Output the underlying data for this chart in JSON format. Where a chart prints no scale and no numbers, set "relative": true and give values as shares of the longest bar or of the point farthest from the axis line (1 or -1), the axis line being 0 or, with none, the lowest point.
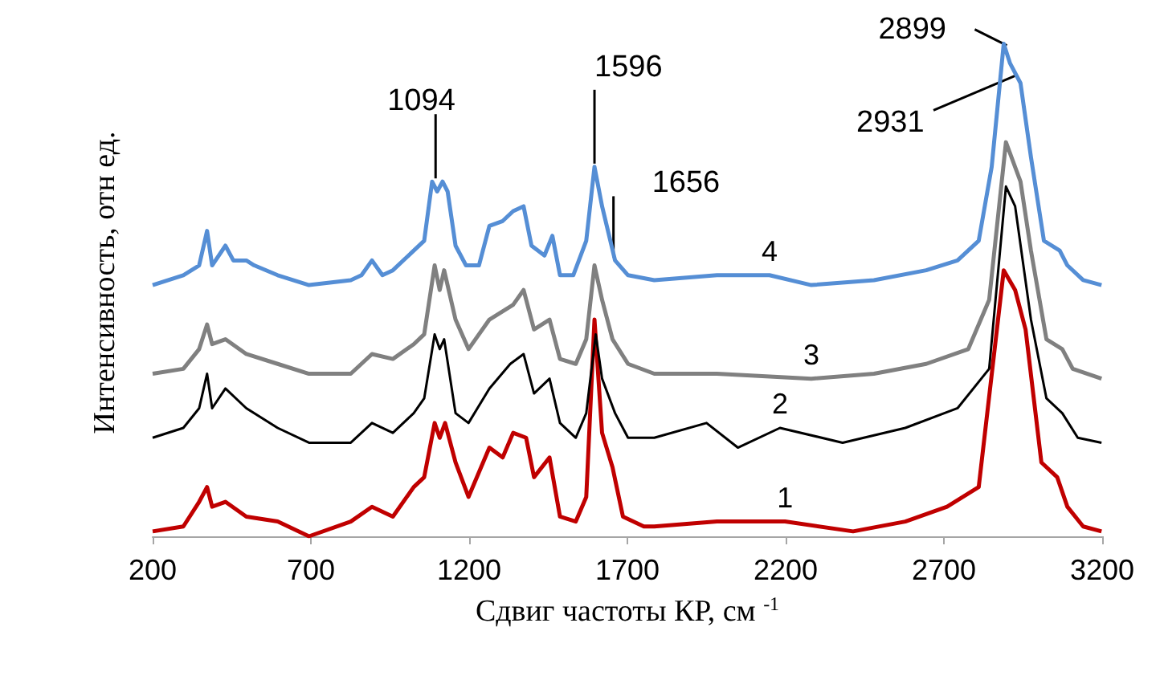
{
  "chart_data": {
    "type": "line",
    "relative": true,
    "xlabel": "Сдвиг частоты КР, см $^{-1}$",
    "ylabel": "Интенсивность, отн ед.",
    "xlim": [
      200,
      3200
    ],
    "xticks": [
      200,
      700,
      {
        "value": 1200,
        "label": "1200"
      },
      {
        "value": 1700,
        "label": "1700"
      },
      {
        "value": 2200,
        "label": "2200"
      },
      {
        "value": 2700,
        "label": "2700"
      },
      {
        "value": 3200,
        "label": "3200"
      }
    ],
    "grid": false,
    "legend": false,
    "marker": "none",
    "line_style": "solid",
    "series": [
      {
        "name": "1",
        "color": "#c00000",
        "x": [
          200,
          297,
          347,
          372,
          388,
          430,
          496,
          595,
          694,
          826,
          893,
          959,
          1025,
          1058,
          1091,
          1107,
          1124,
          1157,
          1198,
          1264,
          1306,
          1339,
          1380,
          1405,
          1454,
          1487,
          1537,
          1570,
          1596,
          1620,
          1653,
          1686,
          1752,
          1785,
          1983,
          2198,
          2413,
          2578,
          2710,
          2810,
          2889,
          2925,
          2958,
          3008,
          3058,
          3090,
          3140,
          3198
        ],
        "values": [
          0.01,
          0.02,
          0.07,
          0.1,
          0.06,
          0.07,
          0.04,
          0.03,
          0.0,
          0.03,
          0.06,
          0.04,
          0.1,
          0.12,
          0.23,
          0.2,
          0.23,
          0.15,
          0.08,
          0.18,
          0.16,
          0.21,
          0.2,
          0.12,
          0.16,
          0.04,
          0.03,
          0.08,
          0.44,
          0.21,
          0.14,
          0.04,
          0.02,
          0.02,
          0.03,
          0.03,
          0.01,
          0.03,
          0.06,
          0.1,
          0.54,
          0.5,
          0.42,
          0.15,
          0.12,
          0.06,
          0.02,
          0.01
        ]
      },
      {
        "name": "2",
        "color": "#000000",
        "x": [
          200,
          297,
          347,
          372,
          388,
          430,
          496,
          595,
          694,
          826,
          893,
          959,
          1025,
          1058,
          1091,
          1107,
          1121,
          1157,
          1198,
          1264,
          1330,
          1372,
          1405,
          1454,
          1487,
          1537,
          1570,
          1600,
          1620,
          1661,
          1702,
          1785,
          1950,
          2049,
          2182,
          2380,
          2578,
          2743,
          2843,
          2896,
          2925,
          2975,
          3024,
          3074,
          3123,
          3198
        ],
        "values": [
          0.2,
          0.22,
          0.26,
          0.33,
          0.26,
          0.3,
          0.26,
          0.22,
          0.19,
          0.19,
          0.23,
          0.21,
          0.25,
          0.28,
          0.41,
          0.38,
          0.4,
          0.25,
          0.23,
          0.3,
          0.35,
          0.37,
          0.29,
          0.32,
          0.23,
          0.2,
          0.25,
          0.41,
          0.32,
          0.25,
          0.2,
          0.2,
          0.23,
          0.18,
          0.22,
          0.19,
          0.22,
          0.26,
          0.34,
          0.71,
          0.67,
          0.44,
          0.28,
          0.25,
          0.2,
          0.19
        ]
      },
      {
        "name": "3",
        "color": "#808080",
        "x": [
          200,
          297,
          347,
          372,
          388,
          430,
          496,
          595,
          694,
          826,
          893,
          959,
          1025,
          1058,
          1091,
          1107,
          1121,
          1157,
          1198,
          1264,
          1339,
          1372,
          1405,
          1454,
          1487,
          1537,
          1570,
          1596,
          1620,
          1653,
          1702,
          1785,
          1983,
          2281,
          2479,
          2644,
          2777,
          2843,
          2896,
          2942,
          2975,
          3024,
          3074,
          3107,
          3198
        ],
        "values": [
          0.33,
          0.34,
          0.38,
          0.43,
          0.39,
          0.4,
          0.37,
          0.35,
          0.33,
          0.33,
          0.37,
          0.36,
          0.39,
          0.41,
          0.55,
          0.5,
          0.54,
          0.44,
          0.38,
          0.44,
          0.47,
          0.5,
          0.42,
          0.44,
          0.36,
          0.35,
          0.4,
          0.55,
          0.48,
          0.4,
          0.35,
          0.33,
          0.33,
          0.32,
          0.33,
          0.35,
          0.38,
          0.48,
          0.8,
          0.72,
          0.58,
          0.4,
          0.38,
          0.34,
          0.32
        ]
      },
      {
        "name": "4",
        "color": "#558ed5",
        "x": [
          200,
          297,
          347,
          372,
          388,
          430,
          455,
          496,
          521,
          595,
          694,
          826,
          860,
          893,
          926,
          959,
          1025,
          1058,
          1083,
          1099,
          1116,
          1132,
          1157,
          1190,
          1231,
          1264,
          1306,
          1339,
          1372,
          1397,
          1438,
          1463,
          1487,
          1529,
          1570,
          1596,
          1620,
          1661,
          1702,
          1785,
          1983,
          2149,
          2281,
          2479,
          2644,
          2743,
          2810,
          2851,
          2889,
          2909,
          2942,
          2975,
          3016,
          3066,
          3090,
          3140,
          3198
        ],
        "values": [
          0.51,
          0.53,
          0.55,
          0.62,
          0.55,
          0.59,
          0.56,
          0.56,
          0.55,
          0.53,
          0.51,
          0.52,
          0.53,
          0.56,
          0.53,
          0.54,
          0.58,
          0.6,
          0.72,
          0.7,
          0.72,
          0.7,
          0.59,
          0.55,
          0.55,
          0.63,
          0.64,
          0.66,
          0.67,
          0.59,
          0.57,
          0.61,
          0.53,
          0.53,
          0.6,
          0.75,
          0.67,
          0.56,
          0.53,
          0.52,
          0.53,
          0.53,
          0.51,
          0.52,
          0.54,
          0.56,
          0.6,
          0.75,
          1.0,
          0.96,
          0.92,
          0.77,
          0.6,
          0.58,
          0.55,
          0.52,
          0.51
        ]
      }
    ],
    "annotations": [
      {
        "text": "1094",
        "x": 1094,
        "y": 0.72
      },
      {
        "text": "1596",
        "x": 1596,
        "y": 0.75
      },
      {
        "text": "1656",
        "x": 1656,
        "y": 0.56
      },
      {
        "text": "2899",
        "x": 2899,
        "y": 0.99
      },
      {
        "text": "2931",
        "x": 2931,
        "y": 0.93
      }
    ]
  }
}
